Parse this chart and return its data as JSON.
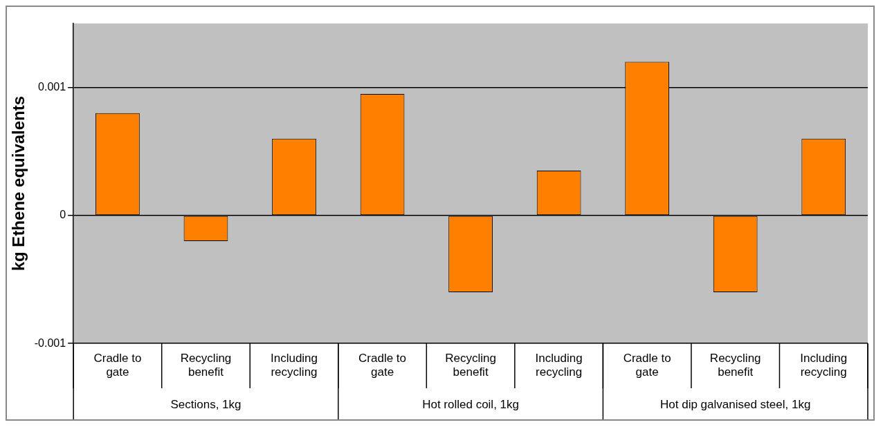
{
  "chart_data": {
    "type": "bar",
    "ylabel": "kg Ethene equivalents",
    "categories": [
      "Cradle to gate",
      "Recycling benefit",
      "Including recycling",
      "Cradle to gate",
      "Recycling benefit",
      "Including recycling",
      "Cradle to gate",
      "Recycling benefit",
      "Including recycling"
    ],
    "values": [
      0.0008,
      -0.0002,
      0.0006,
      0.00095,
      -0.0006,
      0.00035,
      0.0012,
      -0.0006,
      0.0006
    ],
    "color": "#ff8000",
    "ylim": [
      -0.001,
      0.0015
    ],
    "yticks": [
      -0.001,
      0,
      0.001
    ],
    "grid": "y",
    "legend": false,
    "annotations": [
      "Sections, 1kg",
      "Hot rolled coil, 1kg",
      "Hot dip galvanised steel, 1kg"
    ]
  }
}
